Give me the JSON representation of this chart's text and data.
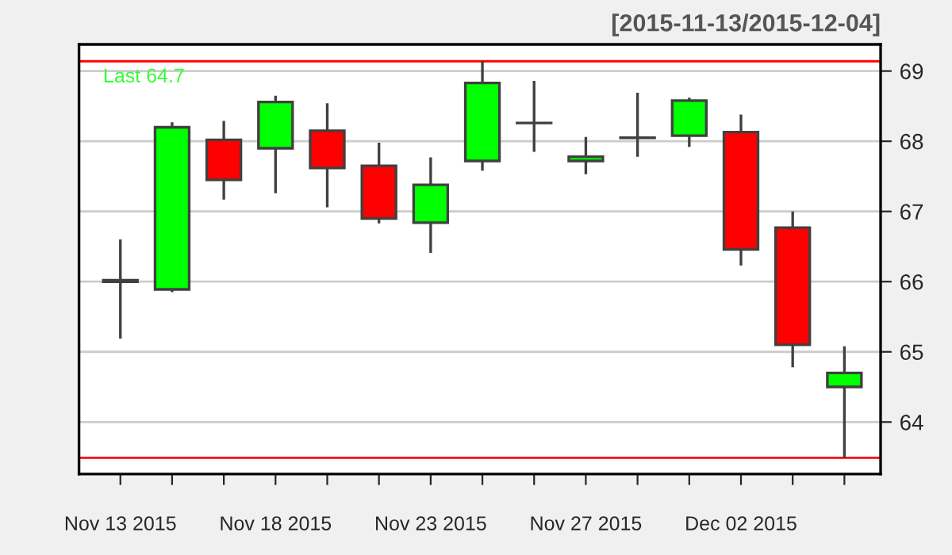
{
  "chart_data": {
    "type": "candlestick",
    "title": "[2015-11-13/2015-12-04]",
    "categories": [
      "Nov 13 2015",
      null,
      null,
      "Nov 18 2015",
      null,
      null,
      "Nov 23 2015",
      null,
      null,
      "Nov 27 2015",
      null,
      null,
      "Dec 02 2015",
      null,
      null
    ],
    "ohlc": [
      [
        66.02,
        66.6,
        65.19,
        66.0
      ],
      [
        65.89,
        68.27,
        65.85,
        68.2
      ],
      [
        68.02,
        68.29,
        67.17,
        67.45
      ],
      [
        67.9,
        68.65,
        67.26,
        68.56
      ],
      [
        68.15,
        68.54,
        67.06,
        67.62
      ],
      [
        67.65,
        67.98,
        66.83,
        66.9
      ],
      [
        66.84,
        67.77,
        66.41,
        67.38
      ],
      [
        67.72,
        69.14,
        67.58,
        68.83
      ],
      [
        68.26,
        68.86,
        67.85,
        68.26
      ],
      [
        67.72,
        68.06,
        67.53,
        67.78
      ],
      [
        68.05,
        68.69,
        67.78,
        68.05
      ],
      [
        68.08,
        68.62,
        67.92,
        68.58
      ],
      [
        68.13,
        68.38,
        66.23,
        66.46
      ],
      [
        66.77,
        67.0,
        64.78,
        65.1
      ],
      [
        64.5,
        65.08,
        63.49,
        64.7
      ]
    ],
    "colors": [
      "#ff0000",
      "#00ff00",
      "#ff0000",
      "#00ff00",
      "#ff0000",
      "#ff0000",
      "#00ff00",
      "#00ff00",
      "#404040",
      "#00ff00",
      "#404040",
      "#00ff00",
      "#ff0000",
      "#ff0000",
      "#00ff00"
    ],
    "ylim": [
      63.26,
      69.38
    ],
    "yticks": [
      64,
      65,
      66,
      67,
      68,
      69
    ],
    "grid": "y",
    "ref_lines": [
      {
        "axis": "y",
        "value": 69.14,
        "color": "#ff0000"
      },
      {
        "axis": "y",
        "value": 63.49,
        "color": "#ff0000"
      }
    ],
    "annotations": [
      "Last 64.7"
    ]
  }
}
